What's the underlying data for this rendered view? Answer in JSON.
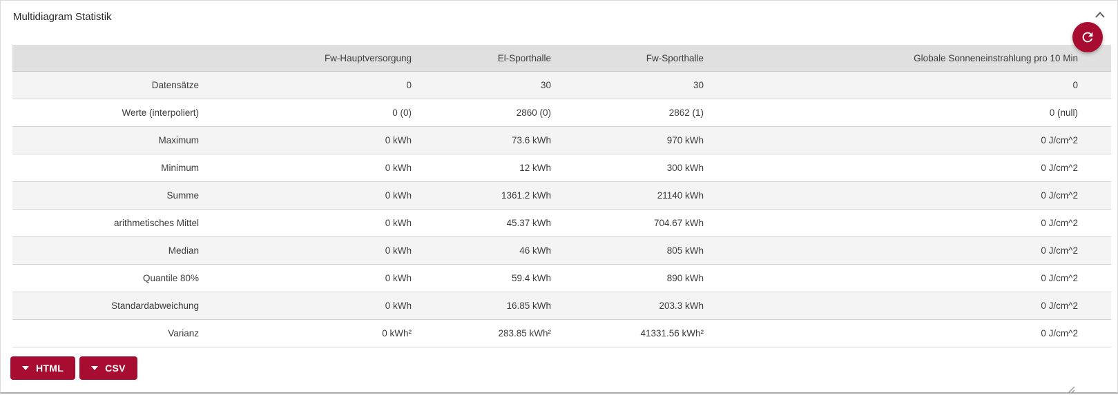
{
  "panel": {
    "title": "Multidiagram Statistik"
  },
  "colors": {
    "accent": "#a80c30",
    "header_bg": "#e0e0e0",
    "row_alt_bg": "#f4f4f4",
    "row_bg": "#ffffff",
    "divider": "#d4d4d4",
    "text": "#3c3c3c"
  },
  "icons": {
    "collapse": "chevron-up-icon",
    "refresh": "refresh-icon",
    "export_caret": "caret-down-icon",
    "resize": "resize-grip-icon"
  },
  "table": {
    "columns": [
      "",
      "Fw-Hauptversorgung",
      "El-Sporthalle",
      "Fw-Sporthalle",
      "Globale Sonneneinstrahlung pro 10 Min"
    ],
    "rows": [
      {
        "label": "Datensätze",
        "values": [
          "0",
          "30",
          "30",
          "0"
        ]
      },
      {
        "label": "Werte (interpoliert)",
        "values": [
          "0 (0)",
          "2860 (0)",
          "2862 (1)",
          "0 (null)"
        ]
      },
      {
        "label": "Maximum",
        "values": [
          "0 kWh",
          "73.6 kWh",
          "970 kWh",
          "0 J/cm^2"
        ]
      },
      {
        "label": "Minimum",
        "values": [
          "0 kWh",
          "12 kWh",
          "300 kWh",
          "0 J/cm^2"
        ]
      },
      {
        "label": "Summe",
        "values": [
          "0 kWh",
          "1361.2 kWh",
          "21140 kWh",
          "0 J/cm^2"
        ]
      },
      {
        "label": "arithmetisches Mittel",
        "values": [
          "0 kWh",
          "45.37 kWh",
          "704.67 kWh",
          "0 J/cm^2"
        ]
      },
      {
        "label": "Median",
        "values": [
          "0 kWh",
          "46 kWh",
          "805 kWh",
          "0 J/cm^2"
        ]
      },
      {
        "label": "Quantile 80%",
        "values": [
          "0 kWh",
          "59.4 kWh",
          "890 kWh",
          "0 J/cm^2"
        ]
      },
      {
        "label": "Standardabweichung",
        "values": [
          "0 kWh",
          "16.85 kWh",
          "203.3 kWh",
          "0 J/cm^2"
        ]
      },
      {
        "label": "Varianz",
        "values": [
          "0 kWh²",
          "283.85 kWh²",
          "41331.56 kWh²",
          "0 J/cm^2"
        ]
      }
    ]
  },
  "export_buttons": [
    {
      "label": "HTML"
    },
    {
      "label": "CSV"
    }
  ]
}
